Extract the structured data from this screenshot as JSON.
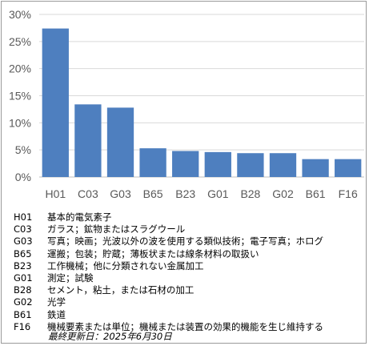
{
  "chart_data": {
    "type": "bar",
    "categories": [
      "H01",
      "C03",
      "G03",
      "B65",
      "B23",
      "G01",
      "B28",
      "G02",
      "B61",
      "F16"
    ],
    "values": [
      27.4,
      13.4,
      12.8,
      5.3,
      4.8,
      4.6,
      4.4,
      4.4,
      3.3,
      3.3
    ],
    "y_tick_labels": [
      "0%",
      "5%",
      "10%",
      "15%",
      "20%",
      "25%",
      "30%"
    ],
    "ylim": [
      0,
      30
    ],
    "title": "",
    "xlabel": "",
    "ylabel": "",
    "grid": true,
    "bar_color": "#4e7fbf"
  },
  "legend": [
    {
      "code": "H01",
      "desc": "基本的電気素子"
    },
    {
      "code": "C03",
      "desc": "ガラス；鉱物またはスラグウール"
    },
    {
      "code": "G03",
      "desc": "写真；映画；光波以外の波を使用する類似技術；電子写真；ホログ"
    },
    {
      "code": "B65",
      "desc": "運搬；包装；貯蔵；薄板状または線条材料の取扱い"
    },
    {
      "code": "B23",
      "desc": "工作機械；他に分類されない金属加工"
    },
    {
      "code": "G01",
      "desc": "測定；試験"
    },
    {
      "code": "B28",
      "desc": "セメント，粘土，または石材の加工"
    },
    {
      "code": "G02",
      "desc": "光学"
    },
    {
      "code": "B61",
      "desc": "鉄道"
    },
    {
      "code": "F16",
      "desc": "機械要素または単位；機械または装置の効果的機能を生じ維持する"
    }
  ],
  "updated": "最終更新日：2025年6月30日"
}
